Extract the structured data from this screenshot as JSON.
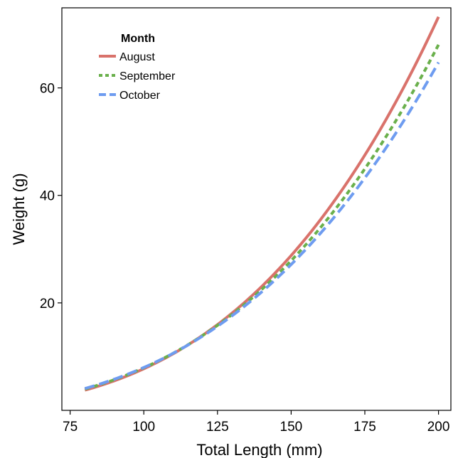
{
  "chart_data": {
    "type": "line",
    "xlabel": "Total Length (mm)",
    "ylabel": "Weight (g)",
    "xlim": [
      80,
      200
    ],
    "ylim": [
      0,
      75
    ],
    "xticks": [
      75,
      100,
      125,
      150,
      175,
      200
    ],
    "yticks": [
      20,
      40,
      60
    ],
    "grid": false,
    "legend": {
      "title": "Month",
      "placement": "top-left"
    },
    "x": [
      80,
      100,
      125,
      150,
      175,
      200
    ],
    "series": [
      {
        "name": "August",
        "color": "#d9726b",
        "dash": "solid",
        "values": [
          3.7,
          7.8,
          16.0,
          29.5,
          47.5,
          71.8
        ]
      },
      {
        "name": "September",
        "color": "#6ab04c",
        "dash": "dotted",
        "values": [
          3.9,
          8.0,
          15.9,
          28.2,
          45.2,
          66.8
        ]
      },
      {
        "name": "October",
        "color": "#6e9cf0",
        "dash": "dashed",
        "values": [
          4.0,
          8.1,
          15.6,
          27.5,
          43.4,
          63.8
        ]
      }
    ]
  }
}
